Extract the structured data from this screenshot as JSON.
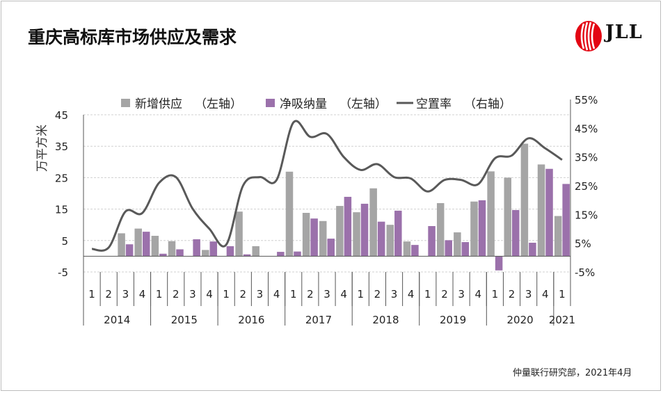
{
  "header": {
    "title": "重庆高标库市场供应及需求",
    "logo_text": "JLL"
  },
  "footer": {
    "source": "仲量联行研究部，2021年4月"
  },
  "colors": {
    "supply": "#a5a5a5",
    "absorption": "#9b71ab",
    "vacancy": "#595959"
  },
  "chart_data": {
    "type": "bar",
    "ylabel": "万平方米",
    "left_axis": {
      "min": -5,
      "max": 45,
      "ticks": [
        -5,
        5,
        15,
        25,
        35,
        45
      ]
    },
    "right_axis": {
      "min": -5,
      "max": 55,
      "ticks": [
        "-5%",
        "5%",
        "15%",
        "25%",
        "35%",
        "45%",
        "55%"
      ]
    },
    "grid": true,
    "legend_position": "top",
    "quarters": [
      "1",
      "2",
      "3",
      "4",
      "1",
      "2",
      "3",
      "4",
      "1",
      "2",
      "3",
      "4",
      "1",
      "2",
      "3",
      "4",
      "1",
      "2",
      "3",
      "4",
      "1",
      "2",
      "3",
      "4",
      "1",
      "2",
      "3",
      "4",
      "1"
    ],
    "years": [
      "2014",
      "2015",
      "2016",
      "2017",
      "2018",
      "2019",
      "2020",
      "2021"
    ],
    "year_spans": [
      4,
      4,
      4,
      4,
      4,
      4,
      4,
      1
    ],
    "series": [
      {
        "name": "新增供应",
        "axis_note": "（左轴）",
        "kind": "bar",
        "values": [
          0,
          0,
          7.3,
          8.8,
          6.5,
          4.8,
          0,
          2.0,
          0,
          14.2,
          3.2,
          0,
          26.9,
          13.8,
          11.2,
          16.0,
          14.0,
          21.6,
          10.0,
          4.7,
          0,
          16.9,
          7.6,
          17.4,
          27.0,
          25.0,
          35.8,
          29.2,
          12.8
        ]
      },
      {
        "name": "净吸纳量",
        "axis_note": "（左轴）",
        "kind": "bar",
        "values": [
          0,
          0,
          3.8,
          7.8,
          0.8,
          2.2,
          5.4,
          4.7,
          3.2,
          0.6,
          0,
          1.4,
          1.5,
          12.0,
          5.6,
          18.9,
          16.7,
          11.0,
          14.5,
          3.6,
          9.6,
          5.1,
          4.5,
          17.8,
          -4.5,
          14.7,
          4.3,
          27.8,
          23.0
        ]
      },
      {
        "name": "空置率",
        "axis_note": "（右轴）",
        "kind": "line",
        "values": [
          3.0,
          3.5,
          16.0,
          15.5,
          26.0,
          28.0,
          17.0,
          10.0,
          4.5,
          25.0,
          28.0,
          27.0,
          47.0,
          42.0,
          43.0,
          35.0,
          30.5,
          32.5,
          28.0,
          27.5,
          23.0,
          27.0,
          27.0,
          25.5,
          34.5,
          35.5,
          41.5,
          38.0,
          34.0
        ]
      }
    ]
  }
}
